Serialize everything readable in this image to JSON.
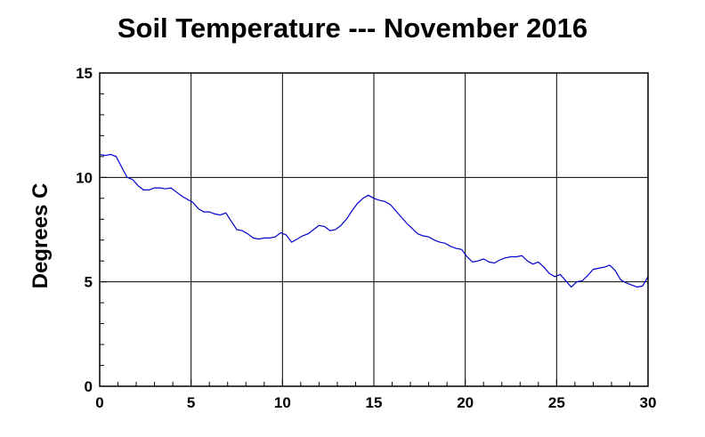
{
  "chart_data": {
    "type": "line",
    "title": "Soil Temperature --- November 2016",
    "xlabel": "",
    "ylabel": "Degrees C",
    "xlim": [
      0,
      30
    ],
    "ylim": [
      0,
      15
    ],
    "x_ticks": [
      0,
      5,
      10,
      15,
      20,
      25,
      30
    ],
    "y_ticks": [
      0,
      5,
      10,
      15
    ],
    "grid": true,
    "legend": "none",
    "series": [
      {
        "color": "#0000cc",
        "x": [
          0,
          0.3,
          0.6,
          0.9,
          1.2,
          1.5,
          1.8,
          2.1,
          2.4,
          2.7,
          3.0,
          3.3,
          3.6,
          3.9,
          4.2,
          4.5,
          4.8,
          5.1,
          5.4,
          5.7,
          6.0,
          6.3,
          6.6,
          6.9,
          7.2,
          7.5,
          7.8,
          8.1,
          8.4,
          8.7,
          9.0,
          9.3,
          9.6,
          9.9,
          10.2,
          10.5,
          10.8,
          11.1,
          11.4,
          11.7,
          12.0,
          12.3,
          12.6,
          12.9,
          13.2,
          13.5,
          13.8,
          14.1,
          14.4,
          14.7,
          15.0,
          15.3,
          15.6,
          15.9,
          16.2,
          16.5,
          16.8,
          17.1,
          17.4,
          17.7,
          18.0,
          18.3,
          18.6,
          18.9,
          19.2,
          19.5,
          19.8,
          20.1,
          20.4,
          20.7,
          21.0,
          21.3,
          21.6,
          21.9,
          22.2,
          22.5,
          22.8,
          23.1,
          23.4,
          23.7,
          24.0,
          24.3,
          24.6,
          24.9,
          25.2,
          25.5,
          25.8,
          26.1,
          26.4,
          26.7,
          27.0,
          27.3,
          27.6,
          27.9,
          28.2,
          28.5,
          28.8,
          29.1,
          29.4,
          29.7,
          30.0
        ],
        "y": [
          11.1,
          11.05,
          11.1,
          11.0,
          10.5,
          10.0,
          9.9,
          9.6,
          9.4,
          9.4,
          9.5,
          9.5,
          9.45,
          9.5,
          9.3,
          9.1,
          8.95,
          8.8,
          8.5,
          8.35,
          8.35,
          8.25,
          8.2,
          8.3,
          7.9,
          7.5,
          7.45,
          7.3,
          7.1,
          7.05,
          7.1,
          7.1,
          7.15,
          7.35,
          7.25,
          6.9,
          7.05,
          7.2,
          7.3,
          7.5,
          7.7,
          7.65,
          7.45,
          7.5,
          7.7,
          8.0,
          8.4,
          8.75,
          9.0,
          9.15,
          9.0,
          8.9,
          8.85,
          8.7,
          8.4,
          8.1,
          7.8,
          7.55,
          7.3,
          7.2,
          7.15,
          7.0,
          6.9,
          6.85,
          6.7,
          6.6,
          6.55,
          6.2,
          5.95,
          6.0,
          6.1,
          5.95,
          5.9,
          6.05,
          6.15,
          6.2,
          6.2,
          6.25,
          6.0,
          5.85,
          5.95,
          5.7,
          5.4,
          5.25,
          5.35,
          5.05,
          4.75,
          5.0,
          5.05,
          5.3,
          5.6,
          5.65,
          5.7,
          5.8,
          5.55,
          5.1,
          4.95,
          4.85,
          4.75,
          4.8,
          5.25
        ]
      }
    ]
  }
}
